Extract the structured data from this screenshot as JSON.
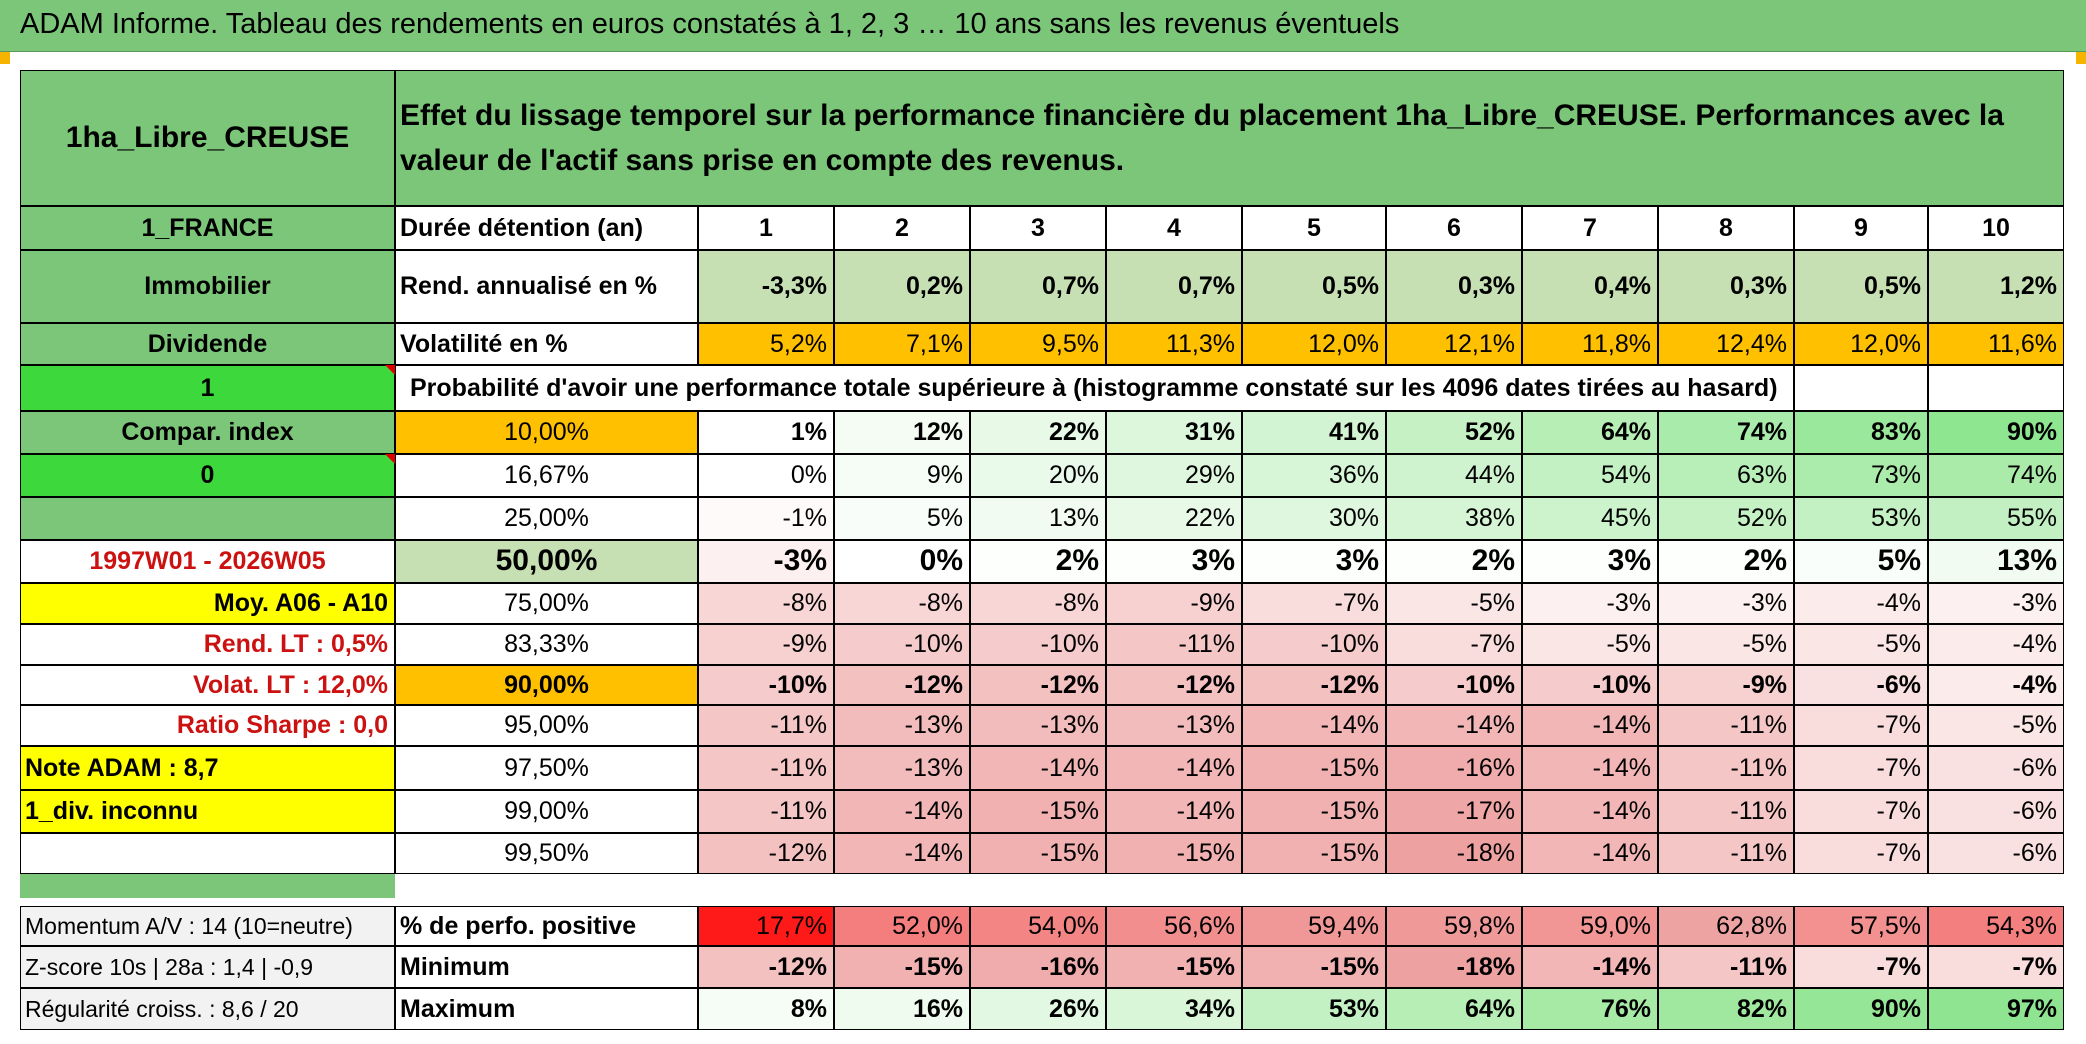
{
  "header": {
    "title": "ADAM Informe. Tableau des rendements en euros constatés à 1, 2, 3 … 10 ans sans les revenus éventuels"
  },
  "left_panel": {
    "asset_name": "1ha_Libre_CREUSE",
    "country": "1_FRANCE",
    "category": "Immobilier",
    "income_type": "Dividende",
    "selector_1": "1",
    "compar_index_label": "Compar. index",
    "selector_2": "0",
    "period": "1997W01 - 2026W05",
    "moy_label": "Moy. A06 - A10",
    "rend_lt": "Rend. LT :   0,5%",
    "volat_lt": "Volat. LT :   12,0%",
    "ratio_sharpe": "Ratio Sharpe :    0,0",
    "note_adam": "Note ADAM : 8,7",
    "div_info": "1_div. inconnu"
  },
  "description": "Effet du lissage temporel sur la performance financière du placement 1ha_Libre_CREUSE. Performances avec la valeur de l'actif sans prise en compte des revenus.",
  "table": {
    "duration_label": "Durée détention (an)",
    "durations": [
      "1",
      "2",
      "3",
      "4",
      "5",
      "6",
      "7",
      "8",
      "9",
      "10"
    ],
    "rend_label": "Rend. annualisé en %",
    "rend_values": [
      "-3,3%",
      "0,2%",
      "0,7%",
      "0,7%",
      "0,5%",
      "0,3%",
      "0,4%",
      "0,3%",
      "0,5%",
      "1,2%"
    ],
    "vol_label": "Volatilité en %",
    "vol_values": [
      "5,2%",
      "7,1%",
      "9,5%",
      "11,3%",
      "12,0%",
      "12,1%",
      "11,8%",
      "12,4%",
      "12,0%",
      "11,6%"
    ],
    "prob_title": "Probabilité d'avoir une performance totale supérieure à (histogramme constaté sur les 4096 dates tirées au hasard)",
    "prob_rows": [
      {
        "threshold": "10,00%",
        "values": [
          "1%",
          "12%",
          "22%",
          "31%",
          "41%",
          "52%",
          "64%",
          "74%",
          "83%",
          "90%"
        ],
        "colors": [
          "#ffffff",
          "#f4fcf4",
          "#e8f9e8",
          "#ddf7dd",
          "#d2f4d2",
          "#c5f1c5",
          "#b6eeb6",
          "#a8ebaa",
          "#9ae89c",
          "#8ee690"
        ]
      },
      {
        "threshold": "16,67%",
        "values": [
          "0%",
          "9%",
          "20%",
          "29%",
          "36%",
          "44%",
          "54%",
          "63%",
          "73%",
          "74%"
        ],
        "colors": [
          "#ffffff",
          "#f6fcf6",
          "#eafaea",
          "#dff7df",
          "#d7f5d7",
          "#cff3cf",
          "#c3f1c3",
          "#b8eeb8",
          "#abebab",
          "#aaebaa"
        ]
      },
      {
        "threshold": "25,00%",
        "values": [
          "-1%",
          "5%",
          "13%",
          "22%",
          "30%",
          "38%",
          "45%",
          "52%",
          "53%",
          "55%"
        ],
        "colors": [
          "#fefafa",
          "#f9fdf9",
          "#f1fbf1",
          "#e8f9e8",
          "#def7de",
          "#d5f5d5",
          "#cdf3cd",
          "#c5f1c5",
          "#c4f1c4",
          "#c2f0c2"
        ]
      },
      {
        "threshold": "50,00%",
        "values": [
          "-3%",
          "0%",
          "2%",
          "3%",
          "3%",
          "2%",
          "3%",
          "2%",
          "5%",
          "13%"
        ],
        "colors": [
          "#fdf0f0",
          "#ffffff",
          "#fdfffd",
          "#fcfffc",
          "#fcfffc",
          "#fdfffd",
          "#fcfffc",
          "#fdfffd",
          "#fafefa",
          "#f1fbf1"
        ]
      },
      {
        "threshold": "75,00%",
        "values": [
          "-8%",
          "-8%",
          "-8%",
          "-9%",
          "-7%",
          "-5%",
          "-3%",
          "-3%",
          "-4%",
          "-3%"
        ],
        "colors": [
          "#f8d6d6",
          "#f8d6d6",
          "#f8d6d6",
          "#f7d0d0",
          "#f9dcdc",
          "#fbe6e6",
          "#fdf0f0",
          "#fdf0f0",
          "#fcebeb",
          "#fdf0f0"
        ]
      },
      {
        "threshold": "83,33%",
        "values": [
          "-9%",
          "-10%",
          "-10%",
          "-11%",
          "-10%",
          "-7%",
          "-5%",
          "-5%",
          "-5%",
          "-4%"
        ],
        "colors": [
          "#f7d0d0",
          "#f6cbcb",
          "#f6cbcb",
          "#f5c6c6",
          "#f6cbcb",
          "#f9dcdc",
          "#fbe6e6",
          "#fbe6e6",
          "#fbe6e6",
          "#fcebeb"
        ]
      },
      {
        "threshold": "90,00%",
        "values": [
          "-10%",
          "-12%",
          "-12%",
          "-12%",
          "-12%",
          "-10%",
          "-10%",
          "-9%",
          "-6%",
          "-4%"
        ],
        "colors": [
          "#f6cbcb",
          "#f4c1c1",
          "#f4c1c1",
          "#f4c1c1",
          "#f4c1c1",
          "#f6cbcb",
          "#f6cbcb",
          "#f7d0d0",
          "#fae1e1",
          "#fcebeb"
        ]
      },
      {
        "threshold": "95,00%",
        "values": [
          "-11%",
          "-13%",
          "-13%",
          "-13%",
          "-14%",
          "-14%",
          "-14%",
          "-11%",
          "-7%",
          "-5%"
        ],
        "colors": [
          "#f5c6c6",
          "#f3bcbc",
          "#f3bcbc",
          "#f3bcbc",
          "#f2b6b6",
          "#f2b6b6",
          "#f2b6b6",
          "#f5c6c6",
          "#f9dcdc",
          "#fbe6e6"
        ]
      },
      {
        "threshold": "97,50%",
        "values": [
          "-11%",
          "-13%",
          "-14%",
          "-14%",
          "-15%",
          "-16%",
          "-14%",
          "-11%",
          "-7%",
          "-6%"
        ],
        "colors": [
          "#f5c6c6",
          "#f3bcbc",
          "#f2b6b6",
          "#f2b6b6",
          "#f1b1b1",
          "#f0acac",
          "#f2b6b6",
          "#f5c6c6",
          "#f9dcdc",
          "#fae1e1"
        ]
      },
      {
        "threshold": "99,00%",
        "values": [
          "-11%",
          "-14%",
          "-15%",
          "-14%",
          "-15%",
          "-17%",
          "-14%",
          "-11%",
          "-7%",
          "-6%"
        ],
        "colors": [
          "#f5c6c6",
          "#f2b6b6",
          "#f1b1b1",
          "#f2b6b6",
          "#f1b1b1",
          "#efa6a6",
          "#f2b6b6",
          "#f5c6c6",
          "#f9dcdc",
          "#fae1e1"
        ]
      },
      {
        "threshold": "99,50%",
        "values": [
          "-12%",
          "-14%",
          "-15%",
          "-15%",
          "-15%",
          "-18%",
          "-14%",
          "-11%",
          "-7%",
          "-6%"
        ],
        "colors": [
          "#f4c1c1",
          "#f2b6b6",
          "#f1b1b1",
          "#f1b1b1",
          "#f1b1b1",
          "#eea1a1",
          "#f2b6b6",
          "#f5c6c6",
          "#f9dcdc",
          "#fae1e1"
        ]
      }
    ],
    "pos_label": "% de perfo. positive",
    "pos_values": [
      "17,7%",
      "52,0%",
      "54,0%",
      "56,6%",
      "59,4%",
      "59,8%",
      "59,0%",
      "62,8%",
      "57,5%",
      "54,3%"
    ],
    "pos_colors": [
      "#ff1a1a",
      "#f47d7d",
      "#f38585",
      "#f28e8e",
      "#f09797",
      "#f09999",
      "#f19595",
      "#eea3a3",
      "#f39191",
      "#f47f7f"
    ],
    "min_label": "Minimum",
    "min_values": [
      "-12%",
      "-15%",
      "-16%",
      "-15%",
      "-15%",
      "-18%",
      "-14%",
      "-11%",
      "-7%",
      "-7%"
    ],
    "min_colors": [
      "#f4c1c1",
      "#f1b1b1",
      "#f0acac",
      "#f1b1b1",
      "#f1b1b1",
      "#eea1a1",
      "#f2b6b6",
      "#f5c6c6",
      "#f9dcdc",
      "#f9dcdc"
    ],
    "max_label": "Maximum",
    "max_values": [
      "8%",
      "16%",
      "26%",
      "34%",
      "53%",
      "64%",
      "76%",
      "82%",
      "90%",
      "97%"
    ],
    "max_colors": [
      "#f6fcf6",
      "#eefbee",
      "#e3f8e3",
      "#d9f6d9",
      "#c3f1c3",
      "#b6eeb6",
      "#a6eaa6",
      "#a0e8a0",
      "#96e698",
      "#8ee490"
    ]
  },
  "bottom_left": {
    "momentum": "Momentum A/V : 14 (10=neutre)",
    "zscore": "Z-score 10s | 28a : 1,4 | -0,9",
    "regularite": "Régularité croiss. : 8,6 / 20"
  }
}
